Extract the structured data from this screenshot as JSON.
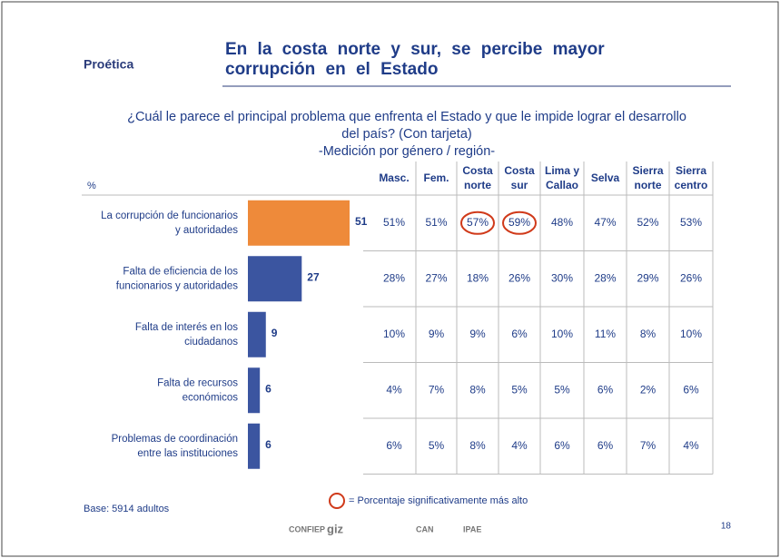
{
  "logo": "Proética",
  "header": {
    "title_lines": [
      "En la costa norte y sur, se percibe mayor",
      "corrupción en el Estado"
    ]
  },
  "question_lines": [
    "¿Cuál le parece el principal problema que enfrenta el Estado y que le impide lograr el desarrollo",
    "del país? (Con tarjeta)",
    "-Medición por género / región-"
  ],
  "unit": "%",
  "columns": [
    [
      "Masc."
    ],
    [
      "Fem."
    ],
    [
      "Costa",
      "norte"
    ],
    [
      "Costa",
      "sur"
    ],
    [
      "Lima y",
      "Callao"
    ],
    [
      "Selva"
    ],
    [
      "Sierra",
      "norte"
    ],
    [
      "Sierra",
      "centro"
    ]
  ],
  "rows": [
    {
      "label": [
        "La corrupción de funcionarios",
        "y autoridades"
      ],
      "value": 51,
      "cells": [
        "51%",
        "51%",
        "57%",
        "59%",
        "48%",
        "47%",
        "52%",
        "53%"
      ],
      "highlight": [
        2,
        3
      ]
    },
    {
      "label": [
        "Falta de eficiencia de los",
        "funcionarios y autoridades"
      ],
      "value": 27,
      "cells": [
        "28%",
        "27%",
        "18%",
        "26%",
        "30%",
        "28%",
        "29%",
        "26%"
      ]
    },
    {
      "label": [
        "Falta de interés en los",
        "ciudadanos"
      ],
      "value": 9,
      "cells": [
        "10%",
        "9%",
        "9%",
        "6%",
        "10%",
        "11%",
        "8%",
        "10%"
      ]
    },
    {
      "label": [
        "Falta de recursos",
        "económicos"
      ],
      "value": 6,
      "cells": [
        "4%",
        "7%",
        "8%",
        "5%",
        "5%",
        "6%",
        "2%",
        "6%"
      ]
    },
    {
      "label": [
        "Problemas de coordinación",
        "entre las instituciones"
      ],
      "value": 6,
      "cells": [
        "6%",
        "5%",
        "8%",
        "4%",
        "6%",
        "6%",
        "7%",
        "4%"
      ]
    }
  ],
  "legend": "= Porcentaje significativamente más alto",
  "base": "Base: 5914 adultos",
  "footer_logos": [
    "CONFIEP",
    "giz",
    "CAN",
    "IPAE"
  ],
  "page_number": "18"
}
